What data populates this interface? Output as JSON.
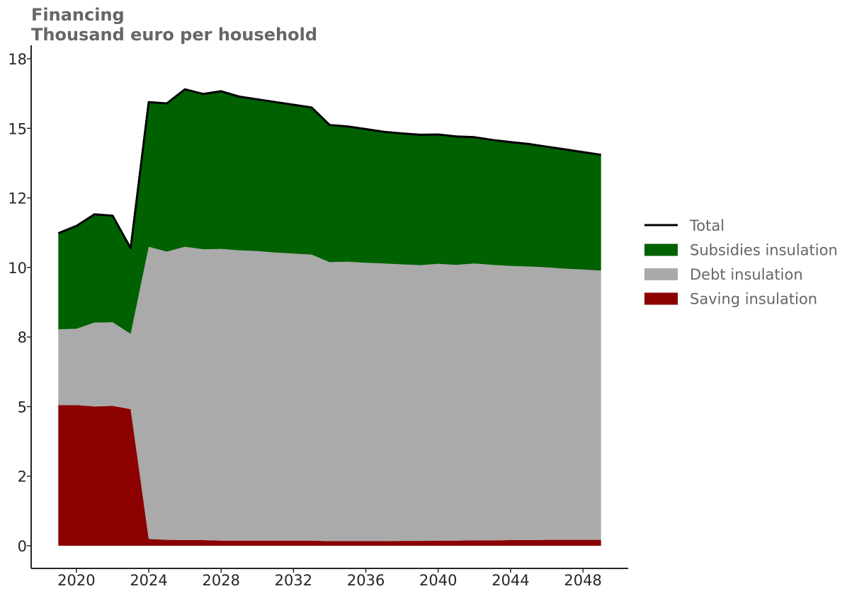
{
  "chart_data": {
    "type": "area",
    "title": "Financing",
    "subtitle": "Thousand euro per household",
    "xlabel": "",
    "ylabel": "",
    "x": [
      2019,
      2020,
      2021,
      2022,
      2023,
      2024,
      2025,
      2026,
      2027,
      2028,
      2029,
      2030,
      2031,
      2032,
      2033,
      2034,
      2035,
      2036,
      2037,
      2038,
      2039,
      2040,
      2041,
      2042,
      2043,
      2044,
      2045,
      2046,
      2047,
      2048,
      2049
    ],
    "series": [
      {
        "name": "Saving insulation",
        "color": "#8b0000",
        "values": [
          5.2,
          5.2,
          5.15,
          5.17,
          5.05,
          0.25,
          0.22,
          0.21,
          0.21,
          0.19,
          0.19,
          0.19,
          0.19,
          0.19,
          0.19,
          0.17,
          0.17,
          0.17,
          0.17,
          0.18,
          0.18,
          0.19,
          0.19,
          0.2,
          0.2,
          0.21,
          0.21,
          0.22,
          0.22,
          0.22,
          0.22
        ]
      },
      {
        "name": "Debt insulation",
        "color": "#aaaaaa",
        "values": [
          2.8,
          2.82,
          3.1,
          3.09,
          2.78,
          10.8,
          10.65,
          10.84,
          10.75,
          10.78,
          10.73,
          10.7,
          10.65,
          10.61,
          10.57,
          10.31,
          10.33,
          10.29,
          10.26,
          10.22,
          10.19,
          10.23,
          10.19,
          10.23,
          10.18,
          10.13,
          10.11,
          10.07,
          10.02,
          9.99,
          9.95
        ]
      },
      {
        "name": "Subsidies insulation",
        "color": "#006100",
        "values": [
          3.55,
          3.8,
          4.0,
          3.94,
          3.17,
          5.35,
          5.48,
          5.82,
          5.74,
          5.83,
          5.68,
          5.61,
          5.56,
          5.5,
          5.44,
          5.07,
          5.0,
          4.94,
          4.87,
          4.84,
          4.82,
          4.78,
          4.75,
          4.67,
          4.62,
          4.58,
          4.53,
          4.46,
          4.41,
          4.34,
          4.28
        ]
      }
    ],
    "total": {
      "name": "Total",
      "color": "#000000",
      "values": [
        11.55,
        11.82,
        12.25,
        12.2,
        11.0,
        16.4,
        16.35,
        16.87,
        16.7,
        16.8,
        16.6,
        16.5,
        16.4,
        16.3,
        16.2,
        15.55,
        15.5,
        15.4,
        15.3,
        15.24,
        15.19,
        15.2,
        15.13,
        15.1,
        15.0,
        14.92,
        14.85,
        14.75,
        14.65,
        14.55,
        14.45
      ]
    },
    "y_ticks": [
      0,
      2,
      5,
      8,
      10,
      12,
      15,
      18
    ],
    "x_ticks": [
      2020,
      2024,
      2028,
      2032,
      2036,
      2040,
      2044,
      2048
    ],
    "ylim": [
      -0.8,
      18.0
    ],
    "xlim": [
      2017.5,
      2050.5
    ],
    "legend": {
      "position": "right",
      "entries": [
        {
          "label": "Total",
          "kind": "line",
          "color": "#000000"
        },
        {
          "label": "Subsidies insulation",
          "kind": "patch",
          "color": "#006100"
        },
        {
          "label": "Debt insulation",
          "kind": "patch",
          "color": "#aaaaaa"
        },
        {
          "label": "Saving insulation",
          "kind": "patch",
          "color": "#8b0000"
        }
      ]
    },
    "grid": false
  }
}
